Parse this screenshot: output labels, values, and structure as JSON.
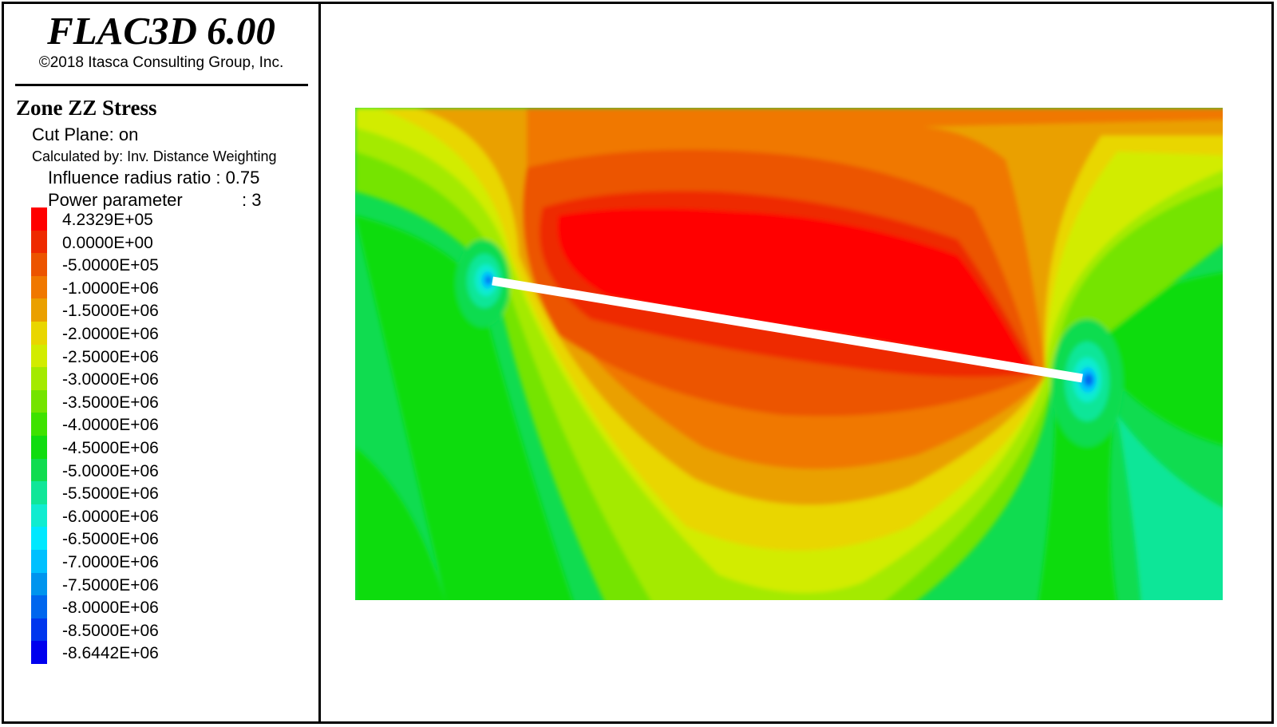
{
  "header": {
    "app_title": "FLAC3D 6.00",
    "copyright": "©2018 Itasca Consulting Group, Inc."
  },
  "legend": {
    "plot_title": "Zone ZZ Stress",
    "cut_plane": "Cut Plane: on",
    "calculated_by": "Calculated by: Inv. Distance Weighting",
    "influence_radius": "Influence radius ratio : 0.75",
    "power_label": "Power parameter",
    "power_value": ": 3",
    "levels": [
      {
        "label": "4.2329E+05",
        "color": "#ff0000"
      },
      {
        "label": "0.0000E+00",
        "color": "#ee2a00"
      },
      {
        "label": "-5.0000E+05",
        "color": "#ec5400"
      },
      {
        "label": "-1.0000E+06",
        "color": "#f07800"
      },
      {
        "label": "-1.5000E+06",
        "color": "#eaa000"
      },
      {
        "label": "-2.0000E+06",
        "color": "#e9d600"
      },
      {
        "label": "-2.5000E+06",
        "color": "#d2ec00"
      },
      {
        "label": "-3.0000E+06",
        "color": "#a4ea00"
      },
      {
        "label": "-3.5000E+06",
        "color": "#74e400"
      },
      {
        "label": "-4.0000E+06",
        "color": "#3ee200"
      },
      {
        "label": "-4.5000E+06",
        "color": "#10dc10"
      },
      {
        "label": "-5.0000E+06",
        "color": "#10dc50"
      },
      {
        "label": "-5.5000E+06",
        "color": "#10e698"
      },
      {
        "label": "-6.0000E+06",
        "color": "#10ecd0"
      },
      {
        "label": "-6.5000E+06",
        "color": "#00e8ff"
      },
      {
        "label": "-7.0000E+06",
        "color": "#00c0ff"
      },
      {
        "label": "-7.5000E+06",
        "color": "#0094ee"
      },
      {
        "label": "-8.0000E+06",
        "color": "#0066ee"
      },
      {
        "label": "-8.5000E+06",
        "color": "#0036ee"
      },
      {
        "label": "-8.6442E+06",
        "color": "#0000ee"
      }
    ]
  },
  "chart_data": {
    "type": "heatmap",
    "title": "Zone ZZ Stress",
    "quantity": "Zone ZZ Stress",
    "contour_levels": [
      423290,
      0,
      -500000,
      -1000000,
      -1500000,
      -2000000,
      -2500000,
      -3000000,
      -3500000,
      -4000000,
      -4500000,
      -5000000,
      -5500000,
      -6000000,
      -6500000,
      -7000000,
      -7500000,
      -8000000,
      -8500000,
      -8644200
    ],
    "max": 423290,
    "min": -8644200,
    "grid": false,
    "legend_position": "left",
    "background_color": "#ffffff",
    "feature_color": "#ffffff"
  }
}
